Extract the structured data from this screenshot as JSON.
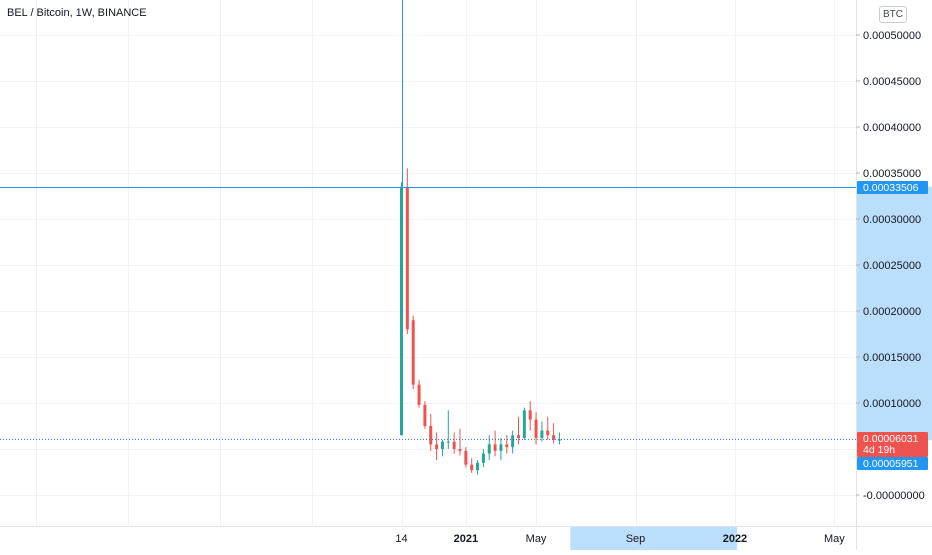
{
  "header": {
    "title": "BEL / Bitcoin, 1W, BINANCE",
    "currency": "BTC"
  },
  "colors": {
    "up": "#26a69a",
    "down": "#ef5350",
    "crosshair": "#2196f3",
    "price_line": "#2962ff",
    "highlight": "#bbdefb"
  },
  "chart_data": {
    "type": "candlestick",
    "symbol": "BEL / Bitcoin",
    "interval": "1W",
    "exchange": "BINANCE",
    "ylim": [
      -1e-05,
      0.00052
    ],
    "y_ticks": [
      "0.00050000",
      "0.00045000",
      "0.00040000",
      "0.00035000",
      "0.00030000",
      "0.00025000",
      "0.00020000",
      "0.00015000",
      "0.00010000",
      "-0.00000000"
    ],
    "y_tick_values": [
      0.0005,
      0.00045,
      0.0004,
      0.00035,
      0.0003,
      0.00025,
      0.0002,
      0.00015,
      0.0001,
      0
    ],
    "x_ticks": [
      "14",
      "2021",
      "May",
      "Sep",
      "2022",
      "May"
    ],
    "x_tick_weeks": [
      0,
      11,
      23,
      40,
      57,
      74
    ],
    "crosshair_price": "0.00033506",
    "crosshair_value": 0.00033506,
    "current_price": "0.00006031",
    "countdown": "4d 19h",
    "price_line_label": "0.00005951",
    "price_line_value": 5.951e-05,
    "candles": [
      {
        "o": 6.5e-05,
        "h": 0.00034,
        "l": 6.5e-05,
        "c": 0.000335
      },
      {
        "o": 0.000335,
        "h": 0.000355,
        "l": 0.000175,
        "c": 0.00018
      },
      {
        "o": 0.00019,
        "h": 0.000195,
        "l": 0.000115,
        "c": 0.00012
      },
      {
        "o": 0.00012,
        "h": 0.000125,
        "l": 9.5e-05,
        "c": 9.8e-05
      },
      {
        "o": 9.8e-05,
        "h": 0.000102,
        "l": 7.2e-05,
        "c": 7.5e-05
      },
      {
        "o": 7.5e-05,
        "h": 8.8e-05,
        "l": 4.8e-05,
        "c": 5.5e-05
      },
      {
        "o": 5.5e-05,
        "h": 6.8e-05,
        "l": 3.8e-05,
        "c": 5e-05
      },
      {
        "o": 5e-05,
        "h": 6e-05,
        "l": 4.2e-05,
        "c": 5.8e-05
      },
      {
        "o": 5.8e-05,
        "h": 9.2e-05,
        "l": 5e-05,
        "c": 5.8e-05
      },
      {
        "o": 5.8e-05,
        "h": 6.8e-05,
        "l": 4.5e-05,
        "c": 5e-05
      },
      {
        "o": 5e-05,
        "h": 7.2e-05,
        "l": 4.3e-05,
        "c": 4.8e-05
      },
      {
        "o": 4.8e-05,
        "h": 5.2e-05,
        "l": 3e-05,
        "c": 3.3e-05
      },
      {
        "o": 3.3e-05,
        "h": 4e-05,
        "l": 2.4e-05,
        "c": 2.7e-05
      },
      {
        "o": 2.7e-05,
        "h": 3.8e-05,
        "l": 2.2e-05,
        "c": 3.5e-05
      },
      {
        "o": 3.5e-05,
        "h": 5e-05,
        "l": 3e-05,
        "c": 4.5e-05
      },
      {
        "o": 4.5e-05,
        "h": 6.5e-05,
        "l": 3.8e-05,
        "c": 5.5e-05
      },
      {
        "o": 5.5e-05,
        "h": 7e-05,
        "l": 4.2e-05,
        "c": 4.8e-05
      },
      {
        "o": 4.8e-05,
        "h": 6.2e-05,
        "l": 3.8e-05,
        "c": 5.5e-05
      },
      {
        "o": 5.5e-05,
        "h": 6.5e-05,
        "l": 4.5e-05,
        "c": 5.2e-05
      },
      {
        "o": 5.2e-05,
        "h": 7e-05,
        "l": 4.5e-05,
        "c": 6.5e-05
      },
      {
        "o": 6.5e-05,
        "h": 8.5e-05,
        "l": 5.5e-05,
        "c": 6.2e-05
      },
      {
        "o": 6.2e-05,
        "h": 9.5e-05,
        "l": 6e-05,
        "c": 9.2e-05
      },
      {
        "o": 9.2e-05,
        "h": 0.000102,
        "l": 7e-05,
        "c": 8.2e-05
      },
      {
        "o": 8.2e-05,
        "h": 9e-05,
        "l": 5.5e-05,
        "c": 6.2e-05
      },
      {
        "o": 6.2e-05,
        "h": 8e-05,
        "l": 5.8e-05,
        "c": 7e-05
      },
      {
        "o": 7e-05,
        "h": 8.5e-05,
        "l": 6e-05,
        "c": 6.5e-05
      },
      {
        "o": 6.5e-05,
        "h": 7.8e-05,
        "l": 5.6e-05,
        "c": 6e-05
      },
      {
        "o": 6e-05,
        "h": 6.8e-05,
        "l": 5.5e-05,
        "c": 6.03e-05
      }
    ]
  }
}
